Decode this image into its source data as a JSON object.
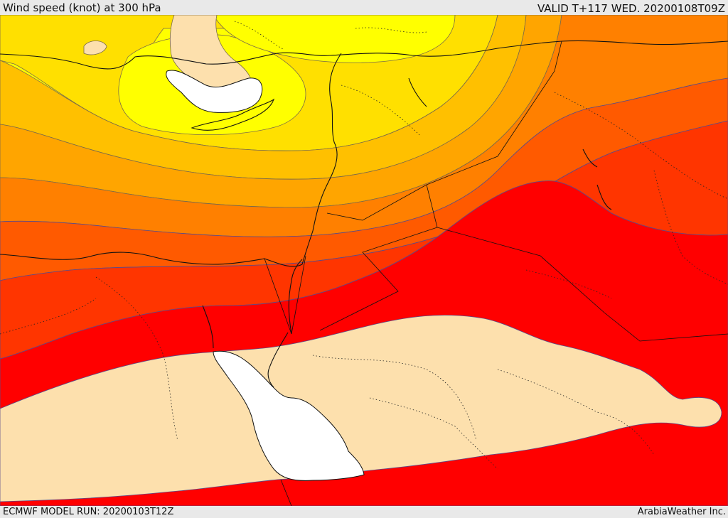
{
  "header": {
    "title": "Wind speed (knot) at 300 hPa",
    "valid": "VALID T+117 WED. 20200108T09Z"
  },
  "footer": {
    "model_run": "ECMWF MODEL RUN: 20200103T12Z",
    "credit": "ArabiaWeather Inc."
  },
  "map": {
    "palette": {
      "light_yellow": "#ffff00",
      "yellow": "#ffe000",
      "gold": "#ffc000",
      "amber": "#ffa500",
      "orange": "#ff8000",
      "dark_orange": "#ff5a00",
      "red_orange": "#ff3500",
      "red": "#ff0000",
      "calm_tan": "#fde0ad",
      "white": "#ffffff"
    }
  }
}
